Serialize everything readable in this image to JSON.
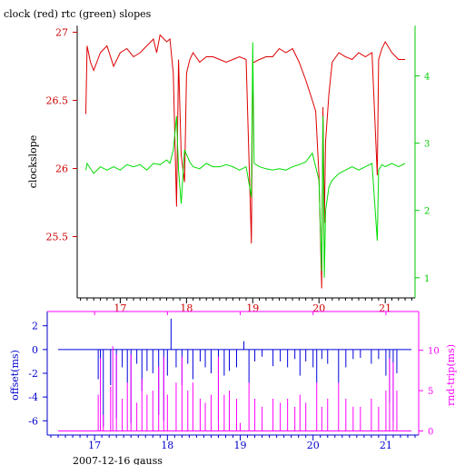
{
  "chart_data": [
    {
      "type": "line",
      "title": "clock (red) rtc (green) slopes",
      "ylabel": "clockslope",
      "xlabel": "",
      "x_ticks": [
        17,
        18,
        19,
        20,
        21
      ],
      "xlim": [
        16.35,
        21.45
      ],
      "y_left_ticks": [
        {
          "v": 25.5,
          "t": "25.5"
        },
        {
          "v": 26,
          "t": "26"
        },
        {
          "v": 26.5,
          "t": "26.5"
        },
        {
          "v": 27,
          "t": "27"
        }
      ],
      "ylim_left": [
        25.05,
        27.05
      ],
      "y_right_ticks": [
        {
          "v": 1,
          "t": "1"
        },
        {
          "v": 2,
          "t": "2"
        },
        {
          "v": 3,
          "t": "3"
        },
        {
          "v": 4,
          "t": "4"
        }
      ],
      "ylim_right": [
        0.7,
        4.75
      ],
      "colors": {
        "frame_left": "#000000",
        "left_axis": "#cc0000",
        "right_axis": "#00cc00",
        "x_ticks": "#cc0000"
      },
      "series": [
        {
          "name": "clock",
          "color": "#dd0000",
          "axis": "left",
          "x": [
            16.48,
            16.5,
            16.55,
            16.6,
            16.7,
            16.8,
            16.9,
            17.0,
            17.1,
            17.2,
            17.3,
            17.4,
            17.5,
            17.55,
            17.6,
            17.7,
            17.75,
            17.8,
            17.85,
            17.88,
            17.92,
            17.97,
            18.0,
            18.05,
            18.1,
            18.2,
            18.3,
            18.4,
            18.5,
            18.6,
            18.7,
            18.8,
            18.9,
            18.98,
            19.0,
            19.02,
            19.1,
            19.2,
            19.3,
            19.4,
            19.5,
            19.6,
            19.7,
            19.8,
            19.9,
            19.95,
            20.0,
            20.04,
            20.06,
            20.08,
            20.1,
            20.15,
            20.2,
            20.3,
            20.4,
            20.5,
            20.6,
            20.7,
            20.8,
            20.88,
            20.9,
            20.95,
            21.0,
            21.1,
            21.2,
            21.3
          ],
          "y": [
            26.4,
            26.9,
            26.78,
            26.72,
            26.85,
            26.9,
            26.75,
            26.85,
            26.88,
            26.82,
            26.85,
            26.9,
            26.95,
            26.85,
            26.98,
            26.93,
            26.95,
            26.7,
            25.72,
            26.8,
            26.1,
            25.9,
            26.7,
            26.8,
            26.85,
            26.78,
            26.82,
            26.82,
            26.8,
            26.78,
            26.8,
            26.82,
            26.8,
            25.45,
            26.78,
            26.78,
            26.8,
            26.82,
            26.82,
            26.88,
            26.85,
            26.88,
            26.78,
            26.65,
            26.5,
            26.42,
            25.95,
            25.12,
            26.45,
            25.6,
            26.2,
            26.55,
            26.78,
            26.85,
            26.82,
            26.8,
            26.85,
            26.82,
            26.85,
            25.95,
            26.8,
            26.88,
            26.93,
            26.85,
            26.8,
            26.8
          ]
        },
        {
          "name": "rtc",
          "color": "#00dd00",
          "axis": "right",
          "x": [
            16.48,
            16.5,
            16.6,
            16.7,
            16.8,
            16.9,
            17.0,
            17.1,
            17.2,
            17.3,
            17.4,
            17.5,
            17.6,
            17.7,
            17.75,
            17.8,
            17.85,
            17.88,
            17.92,
            17.97,
            18.05,
            18.1,
            18.2,
            18.3,
            18.4,
            18.5,
            18.6,
            18.7,
            18.8,
            18.9,
            18.98,
            19.0,
            19.02,
            19.1,
            19.2,
            19.3,
            19.4,
            19.5,
            19.6,
            19.7,
            19.8,
            19.9,
            20.0,
            20.04,
            20.06,
            20.08,
            20.1,
            20.15,
            20.2,
            20.3,
            20.4,
            20.5,
            20.6,
            20.7,
            20.8,
            20.88,
            20.9,
            20.95,
            21.0,
            21.1,
            21.2,
            21.3
          ],
          "y": [
            2.6,
            2.7,
            2.55,
            2.65,
            2.6,
            2.65,
            2.6,
            2.68,
            2.65,
            2.68,
            2.6,
            2.7,
            2.68,
            2.75,
            2.7,
            2.9,
            3.4,
            2.6,
            2.1,
            2.9,
            2.72,
            2.65,
            2.62,
            2.7,
            2.65,
            2.65,
            2.68,
            2.65,
            2.6,
            2.65,
            2.2,
            4.5,
            2.7,
            2.65,
            2.62,
            2.6,
            2.62,
            2.6,
            2.65,
            2.68,
            2.72,
            2.85,
            2.45,
            1.1,
            3.4,
            1.0,
            2.0,
            2.35,
            2.45,
            2.55,
            2.6,
            2.65,
            2.6,
            2.65,
            2.7,
            1.55,
            2.6,
            2.68,
            2.65,
            2.7,
            2.65,
            2.7
          ]
        }
      ]
    },
    {
      "type": "line",
      "title": "",
      "ylabel": "offset(ms)",
      "ylabel_right": "rnd-trip(ms)",
      "xlabel": "2007-12-16 gauss",
      "x_ticks": [
        17,
        18,
        19,
        20,
        21
      ],
      "xlim": [
        16.35,
        21.45
      ],
      "y_left_ticks": [
        {
          "v": -6,
          "t": "-6"
        },
        {
          "v": -4,
          "t": "-4"
        },
        {
          "v": -2,
          "t": "-2"
        },
        {
          "v": 0,
          "t": "0"
        },
        {
          "v": 2,
          "t": "2"
        }
      ],
      "ylim_left": [
        -7.2,
        3.2
      ],
      "y_right_ticks": [
        {
          "v": 0,
          "t": "0"
        },
        {
          "v": 5,
          "t": "5"
        },
        {
          "v": 10,
          "t": "10"
        }
      ],
      "ylim_right": [
        -0.5,
        14.8
      ],
      "colors": {
        "frame_left": "#0000cc",
        "frame_right": "#ff00ff",
        "left_axis": "#0000cc",
        "right_axis": "#ff00ff",
        "x_ticks": "#0000cc"
      },
      "series": [
        {
          "name": "offset",
          "color": "#0000dd",
          "axis": "left",
          "baseline": 0,
          "x": [
            17.05,
            17.08,
            17.12,
            17.22,
            17.3,
            17.38,
            17.45,
            17.5,
            17.58,
            17.65,
            17.72,
            17.8,
            17.88,
            17.95,
            18.0,
            18.05,
            18.12,
            18.2,
            18.28,
            18.35,
            18.45,
            18.52,
            18.6,
            18.7,
            18.78,
            18.85,
            18.95,
            19.05,
            19.12,
            19.2,
            19.3,
            19.45,
            19.55,
            19.65,
            19.75,
            19.82,
            19.9,
            20.0,
            20.05,
            20.12,
            20.2,
            20.35,
            20.45,
            20.55,
            20.65,
            20.8,
            20.9,
            21.0,
            21.05,
            21.1,
            21.15
          ],
          "y": [
            -2.5,
            -4.5,
            -6.5,
            -3.0,
            -5.8,
            -1.5,
            -2.8,
            -6.2,
            -1.2,
            -3.5,
            -1.8,
            -2.0,
            -5.5,
            -6.0,
            -2.2,
            2.6,
            -1.5,
            -3.0,
            -1.2,
            -2.5,
            -1.0,
            -1.5,
            -2.0,
            -6.0,
            -2.2,
            -1.8,
            -1.5,
            0.7,
            -2.8,
            -1.0,
            -0.6,
            -1.4,
            -1.0,
            -1.5,
            -0.8,
            -2.2,
            -1.0,
            -1.5,
            -2.8,
            -0.8,
            -1.2,
            -2.8,
            -1.5,
            -0.8,
            -0.7,
            -1.2,
            -0.8,
            -2.2,
            -4.5,
            -6.0,
            -2.0
          ]
        },
        {
          "name": "rnd-trip",
          "color": "#ff00ff",
          "axis": "right",
          "baseline": 0,
          "x": [
            17.05,
            17.08,
            17.12,
            17.22,
            17.25,
            17.3,
            17.38,
            17.45,
            17.5,
            17.58,
            17.65,
            17.72,
            17.8,
            17.88,
            17.95,
            18.0,
            18.12,
            18.2,
            18.28,
            18.35,
            18.45,
            18.52,
            18.6,
            18.7,
            18.78,
            18.85,
            18.95,
            19.0,
            19.12,
            19.2,
            19.3,
            19.45,
            19.55,
            19.65,
            19.75,
            19.82,
            19.9,
            20.05,
            20.12,
            20.2,
            20.35,
            20.45,
            20.55,
            20.65,
            20.8,
            20.9,
            21.0,
            21.05,
            21.1,
            21.15
          ],
          "y": [
            4.5,
            9.0,
            2.0,
            5.5,
            10.5,
            9.5,
            4.0,
            6.0,
            9.5,
            3.5,
            6.5,
            4.5,
            5.0,
            8.0,
            9.2,
            4.5,
            6.0,
            9.2,
            5.0,
            6.0,
            4.0,
            3.5,
            4.5,
            9.2,
            4.5,
            5.0,
            4.0,
            1.0,
            6.0,
            4.0,
            3.0,
            4.0,
            3.5,
            4.0,
            3.0,
            4.5,
            3.5,
            6.0,
            3.0,
            4.0,
            6.0,
            4.0,
            3.0,
            3.0,
            4.0,
            3.0,
            5.0,
            9.0,
            8.5,
            5.0
          ]
        }
      ]
    }
  ]
}
